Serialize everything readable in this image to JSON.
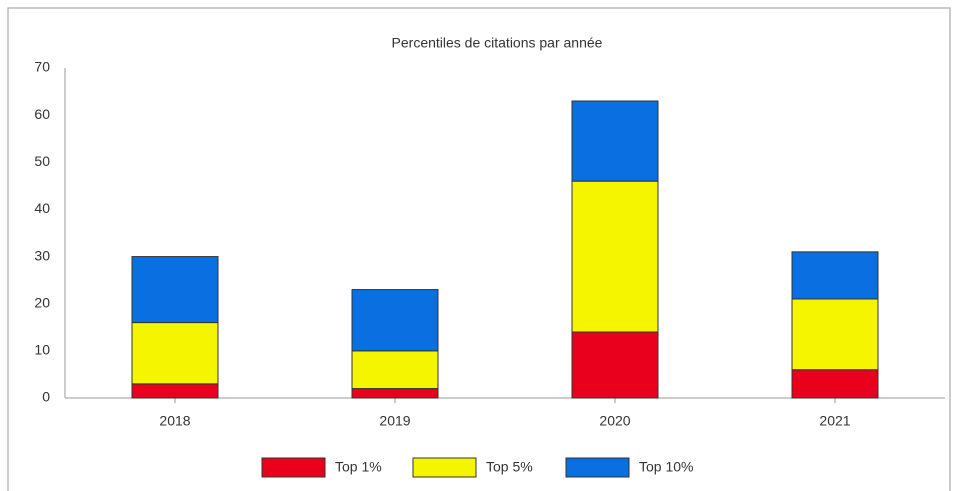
{
  "chart_data": {
    "type": "stacked_bar",
    "title": "Percentiles de citations par année",
    "categories": [
      "2018",
      "2019",
      "2020",
      "2021"
    ],
    "series": [
      {
        "name": "Top 1%",
        "color": "#e8001c",
        "values": [
          3,
          2,
          14,
          6
        ]
      },
      {
        "name": "Top 5%",
        "color": "#f5f500",
        "values": [
          13,
          8,
          32,
          15
        ]
      },
      {
        "name": "Top 10%",
        "color": "#0a6fe0",
        "values": [
          14,
          13,
          17,
          10
        ]
      }
    ],
    "ylim": [
      0,
      70
    ],
    "yticks": [
      0,
      10,
      20,
      30,
      40,
      50,
      60,
      70
    ],
    "grid": false,
    "legend": "bottom"
  }
}
